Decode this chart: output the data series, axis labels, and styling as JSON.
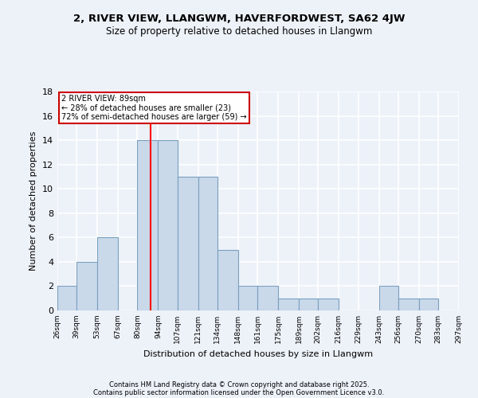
{
  "title1": "2, RIVER VIEW, LLANGWM, HAVERFORDWEST, SA62 4JW",
  "title2": "Size of property relative to detached houses in Llangwm",
  "xlabel": "Distribution of detached houses by size in Llangwm",
  "ylabel": "Number of detached properties",
  "bar_values": [
    2,
    4,
    6,
    0,
    14,
    14,
    11,
    11,
    5,
    2,
    2,
    1,
    1,
    1,
    0,
    0,
    2,
    1,
    1,
    0
  ],
  "bin_edges": [
    26,
    39,
    53,
    67,
    80,
    94,
    107,
    121,
    134,
    148,
    161,
    175,
    189,
    202,
    216,
    229,
    243,
    256,
    270,
    283,
    297
  ],
  "tick_labels": [
    "26sqm",
    "39sqm",
    "53sqm",
    "67sqm",
    "80sqm",
    "94sqm",
    "107sqm",
    "121sqm",
    "134sqm",
    "148sqm",
    "161sqm",
    "175sqm",
    "189sqm",
    "202sqm",
    "216sqm",
    "229sqm",
    "243sqm",
    "256sqm",
    "270sqm",
    "283sqm",
    "297sqm"
  ],
  "bar_color": "#c9d9ea",
  "bar_edge_color": "#7aa0c0",
  "red_line_x": 89,
  "annotation_text": "2 RIVER VIEW: 89sqm\n← 28% of detached houses are smaller (23)\n72% of semi-detached houses are larger (59) →",
  "annotation_box_color": "#ffffff",
  "annotation_box_edge": "#cc0000",
  "ylim": [
    0,
    18
  ],
  "yticks": [
    0,
    2,
    4,
    6,
    8,
    10,
    12,
    14,
    16,
    18
  ],
  "background_color": "#edf2f9",
  "grid_color": "#ffffff",
  "footer1": "Contains HM Land Registry data © Crown copyright and database right 2025.",
  "footer2": "Contains public sector information licensed under the Open Government Licence v3.0."
}
